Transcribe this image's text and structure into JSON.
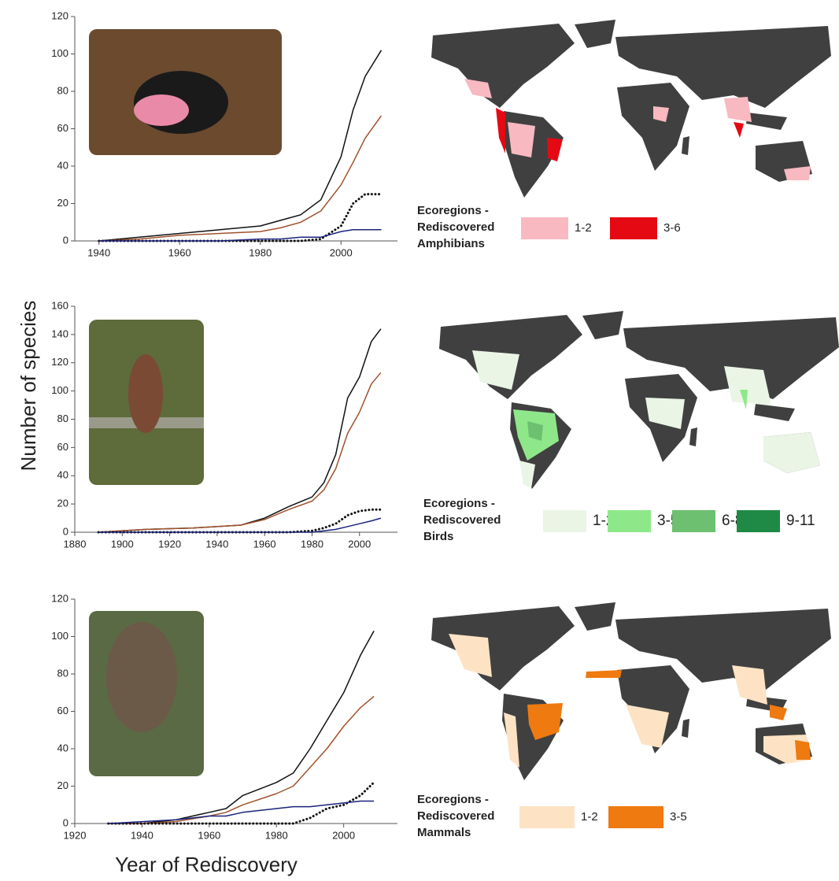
{
  "y_label": "Number of species",
  "x_label": "Year of Rediscovery",
  "chart_data": [
    {
      "type": "line",
      "xlim": [
        1934,
        2014
      ],
      "xticks": [
        1940,
        1960,
        1980,
        2000
      ],
      "ylim": [
        0,
        120
      ],
      "yticks": [
        0,
        20,
        40,
        60,
        80,
        100,
        120
      ],
      "x": [
        1940,
        1950,
        1960,
        1970,
        1980,
        1985,
        1990,
        1995,
        2000,
        2003,
        2006,
        2010
      ],
      "series": [
        {
          "color": "#111111",
          "values": [
            0,
            2,
            4,
            6,
            8,
            11,
            14,
            22,
            45,
            70,
            88,
            102
          ]
        },
        {
          "color": "#a0522d",
          "values": [
            0,
            1,
            3,
            4,
            5,
            7,
            10,
            16,
            30,
            42,
            55,
            67
          ]
        },
        {
          "color": "#111111",
          "dash": "dotted",
          "values": [
            0,
            0,
            0,
            0,
            0,
            0,
            0,
            1,
            8,
            20,
            25,
            25
          ]
        },
        {
          "color": "#1a237e",
          "values": [
            0,
            0,
            0,
            0,
            1,
            1,
            2,
            2,
            5,
            6,
            6,
            6
          ]
        }
      ]
    },
    {
      "type": "line",
      "xlim": [
        1880,
        2016
      ],
      "xticks": [
        1880,
        1900,
        1920,
        1940,
        1960,
        1980,
        2000
      ],
      "ylim": [
        0,
        160
      ],
      "yticks": [
        0,
        20,
        40,
        60,
        80,
        100,
        120,
        140,
        160
      ],
      "x": [
        1890,
        1910,
        1930,
        1950,
        1960,
        1970,
        1980,
        1985,
        1990,
        1995,
        2000,
        2005,
        2009
      ],
      "series": [
        {
          "color": "#111111",
          "values": [
            0,
            2,
            3,
            5,
            10,
            18,
            25,
            35,
            55,
            95,
            110,
            135,
            144
          ]
        },
        {
          "color": "#a0522d",
          "values": [
            0,
            2,
            3,
            5,
            9,
            16,
            22,
            30,
            45,
            70,
            85,
            105,
            113
          ]
        },
        {
          "color": "#111111",
          "dash": "dotted",
          "values": [
            0,
            0,
            0,
            0,
            0,
            0,
            1,
            3,
            6,
            12,
            15,
            16,
            16
          ]
        },
        {
          "color": "#1a237e",
          "values": [
            0,
            0,
            0,
            0,
            0,
            0,
            0,
            1,
            2,
            4,
            6,
            8,
            10
          ]
        }
      ]
    },
    {
      "type": "line",
      "xlim": [
        1920,
        2016
      ],
      "xticks": [
        1920,
        1940,
        1960,
        1980,
        2000
      ],
      "ylim": [
        0,
        120
      ],
      "yticks": [
        0,
        20,
        40,
        60,
        80,
        100,
        120
      ],
      "x": [
        1930,
        1940,
        1950,
        1960,
        1965,
        1970,
        1980,
        1985,
        1990,
        1995,
        2000,
        2005,
        2009
      ],
      "series": [
        {
          "color": "#111111",
          "values": [
            0,
            0,
            2,
            6,
            8,
            15,
            22,
            27,
            40,
            55,
            70,
            90,
            103
          ]
        },
        {
          "color": "#a0522d",
          "values": [
            0,
            0,
            1,
            4,
            6,
            10,
            16,
            20,
            30,
            40,
            52,
            62,
            68
          ]
        },
        {
          "color": "#111111",
          "dash": "dotted",
          "values": [
            0,
            0,
            0,
            0,
            0,
            0,
            0,
            0,
            3,
            8,
            10,
            15,
            22
          ]
        },
        {
          "color": "#1a237e",
          "values": [
            0,
            1,
            2,
            4,
            4,
            6,
            8,
            9,
            9,
            10,
            11,
            12,
            12
          ]
        }
      ]
    }
  ],
  "maps": [
    {
      "legend_title": [
        "Ecoregions -",
        "Rediscovered",
        "Amphibians"
      ],
      "legend": [
        {
          "label": "1-2",
          "color": "#f8b9c0"
        },
        {
          "label": "3-6",
          "color": "#e50914"
        }
      ]
    },
    {
      "legend_title": [
        "Ecoregions -",
        "Rediscovered",
        "Birds"
      ],
      "legend": [
        {
          "label": "1-2",
          "color": "#eaf5e6"
        },
        {
          "label": "3-5",
          "color": "#8ee88a"
        },
        {
          "label": "6-8",
          "color": "#6cc070"
        },
        {
          "label": "9-11",
          "color": "#1e8a45"
        }
      ]
    },
    {
      "legend_title": [
        "Ecoregions -",
        "Rediscovered",
        "Mammals"
      ],
      "legend": [
        {
          "label": "1-2",
          "color": "#fde3c4"
        },
        {
          "label": "3-5",
          "color": "#ee7a10"
        }
      ]
    }
  ]
}
